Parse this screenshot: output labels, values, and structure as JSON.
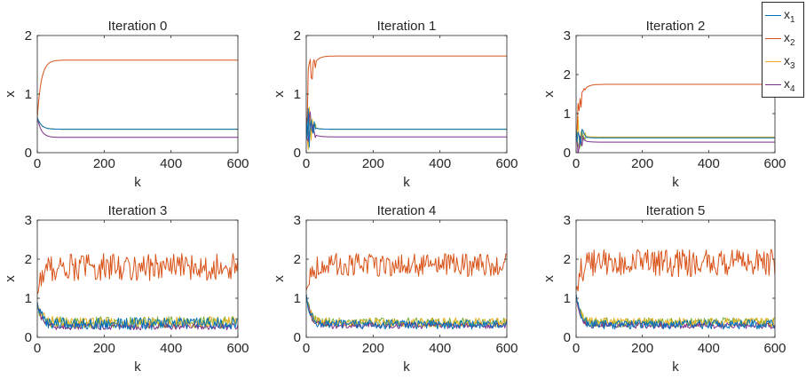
{
  "legend": [
    {
      "base": "x",
      "sub": "1",
      "color": "#0072BD"
    },
    {
      "base": "x",
      "sub": "2",
      "color": "#D95319"
    },
    {
      "base": "x",
      "sub": "3",
      "color": "#EDB120"
    },
    {
      "base": "x",
      "sub": "4",
      "color": "#7E2F8E"
    }
  ],
  "chart_data": [
    {
      "type": "line",
      "title": "Iteration 0",
      "xlabel": "k",
      "ylabel": "x",
      "xlim": [
        0,
        600
      ],
      "ylim": [
        0,
        2
      ],
      "xticks": [
        0,
        200,
        400,
        600
      ],
      "yticks": [
        0,
        1,
        2
      ],
      "series": [
        {
          "name": "x1",
          "color": "#0072BD",
          "steady": 0.4,
          "osc": 0,
          "start": 0.6
        },
        {
          "name": "x2",
          "color": "#D95319",
          "steady": 1.58,
          "osc": 0,
          "start": 0.6
        },
        {
          "name": "x3",
          "color": "#EDB120",
          "steady": 0.4,
          "osc": 0,
          "start": 0.6
        },
        {
          "name": "x4",
          "color": "#7E2F8E",
          "steady": 0.26,
          "osc": 0,
          "start": 0.6
        },
        {
          "name": "",
          "color": "#77AC30",
          "steady": 0.4,
          "osc": 0,
          "start": 0.6
        }
      ]
    },
    {
      "type": "line",
      "title": "Iteration 1",
      "xlabel": "k",
      "ylabel": "x",
      "xlim": [
        0,
        600
      ],
      "ylim": [
        0,
        2
      ],
      "xticks": [
        0,
        200,
        400,
        600
      ],
      "yticks": [
        0,
        1,
        2
      ],
      "series": [
        {
          "name": "x1",
          "color": "#0072BD",
          "steady": 0.4,
          "osc": 0,
          "start": 0.6
        },
        {
          "name": "x2",
          "color": "#D95319",
          "steady": 1.65,
          "osc": 0,
          "start": 0.6
        },
        {
          "name": "x3",
          "color": "#EDB120",
          "steady": 0.4,
          "osc": 0,
          "start": 0.6
        },
        {
          "name": "x4",
          "color": "#7E2F8E",
          "steady": 0.27,
          "osc": 0,
          "start": 0.6
        },
        {
          "name": "",
          "color": "#77AC30",
          "steady": 0.4,
          "osc": 0,
          "start": 0.6
        }
      ]
    },
    {
      "type": "line",
      "title": "Iteration 2",
      "xlabel": "k",
      "ylabel": "x",
      "xlim": [
        0,
        600
      ],
      "ylim": [
        0,
        3
      ],
      "xticks": [
        0,
        200,
        400,
        600
      ],
      "yticks": [
        0,
        1,
        2,
        3
      ],
      "series": [
        {
          "name": "x1",
          "color": "#0072BD",
          "steady": 0.38,
          "osc": 0,
          "start": 0.6
        },
        {
          "name": "x2",
          "color": "#D95319",
          "steady": 1.75,
          "osc": 0,
          "start": 0.6
        },
        {
          "name": "x3",
          "color": "#EDB120",
          "steady": 0.4,
          "osc": 0,
          "start": 0.6
        },
        {
          "name": "x4",
          "color": "#7E2F8E",
          "steady": 0.27,
          "osc": 0,
          "start": 0.6
        },
        {
          "name": "",
          "color": "#77AC30",
          "steady": 0.38,
          "osc": 0,
          "start": 0.6
        }
      ]
    },
    {
      "type": "line",
      "title": "Iteration 3",
      "xlabel": "k",
      "ylabel": "x",
      "xlim": [
        0,
        600
      ],
      "ylim": [
        0,
        3
      ],
      "xticks": [
        0,
        200,
        400,
        600
      ],
      "yticks": [
        0,
        1,
        2,
        3
      ],
      "series": [
        {
          "name": "x1",
          "color": "#0072BD",
          "steady": 0.35,
          "osc": 0.15,
          "start": 0.9
        },
        {
          "name": "x2",
          "color": "#D95319",
          "steady": 1.8,
          "osc": 0.35,
          "start": 1.1
        },
        {
          "name": "x3",
          "color": "#EDB120",
          "steady": 0.38,
          "osc": 0.15,
          "start": 0.9
        },
        {
          "name": "x4",
          "color": "#7E2F8E",
          "steady": 0.27,
          "osc": 0.08,
          "start": 0.9
        },
        {
          "name": "",
          "color": "#77AC30",
          "steady": 0.38,
          "osc": 0.15,
          "start": 0.9
        }
      ]
    },
    {
      "type": "line",
      "title": "Iteration 4",
      "xlabel": "k",
      "ylabel": "x",
      "xlim": [
        0,
        600
      ],
      "ylim": [
        0,
        3
      ],
      "xticks": [
        0,
        200,
        400,
        600
      ],
      "yticks": [
        0,
        1,
        2,
        3
      ],
      "series": [
        {
          "name": "x1",
          "color": "#0072BD",
          "steady": 0.33,
          "osc": 0.12,
          "start": 1.1
        },
        {
          "name": "x2",
          "color": "#D95319",
          "steady": 1.85,
          "osc": 0.3,
          "start": 1.2
        },
        {
          "name": "x3",
          "color": "#EDB120",
          "steady": 0.38,
          "osc": 0.12,
          "start": 1.1
        },
        {
          "name": "x4",
          "color": "#7E2F8E",
          "steady": 0.3,
          "osc": 0.08,
          "start": 1.1
        },
        {
          "name": "",
          "color": "#77AC30",
          "steady": 0.38,
          "osc": 0.12,
          "start": 1.1
        }
      ]
    },
    {
      "type": "line",
      "title": "Iteration 5",
      "xlabel": "k",
      "ylabel": "x",
      "xlim": [
        0,
        600
      ],
      "ylim": [
        0,
        3
      ],
      "xticks": [
        0,
        200,
        400,
        600
      ],
      "yticks": [
        0,
        1,
        2,
        3
      ],
      "series": [
        {
          "name": "x1",
          "color": "#0072BD",
          "steady": 0.33,
          "osc": 0.12,
          "start": 1.1
        },
        {
          "name": "x2",
          "color": "#D95319",
          "steady": 1.9,
          "osc": 0.35,
          "start": 1.2
        },
        {
          "name": "x3",
          "color": "#EDB120",
          "steady": 0.38,
          "osc": 0.12,
          "start": 1.1
        },
        {
          "name": "x4",
          "color": "#7E2F8E",
          "steady": 0.3,
          "osc": 0.08,
          "start": 1.1
        },
        {
          "name": "",
          "color": "#77AC30",
          "steady": 0.38,
          "osc": 0.12,
          "start": 1.1
        }
      ]
    }
  ]
}
